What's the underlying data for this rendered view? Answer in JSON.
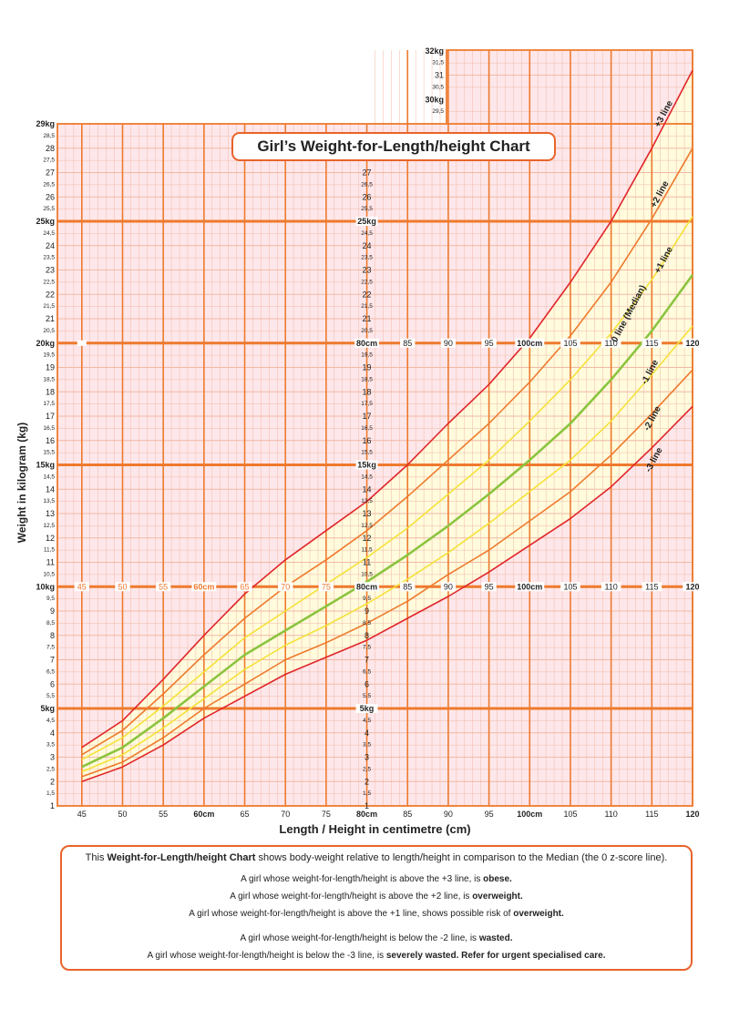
{
  "title": "Girl’s Weight-for-Length/height Chart",
  "chart_data": {
    "type": "line",
    "title": "Girl’s Weight-for-Length/height Chart",
    "xlabel": "Length / Height in centimetre (cm)",
    "ylabel": "Weight in kilogram (kg)",
    "xlim": [
      42,
      120
    ],
    "ylim": [
      1,
      29
    ],
    "ylim_extended_right": [
      1,
      32
    ],
    "grid": true,
    "x_ticks": [
      "45",
      "50",
      "55",
      "60cm",
      "65",
      "70",
      "75",
      "80cm",
      "85",
      "90",
      "95",
      "100cm",
      "105",
      "110",
      "115",
      "120"
    ],
    "x_tick_values": [
      45,
      50,
      55,
      60,
      65,
      70,
      75,
      80,
      85,
      90,
      95,
      100,
      105,
      110,
      115,
      120
    ],
    "y_ticks": [
      "1",
      "1,5",
      "2",
      "2,5",
      "3",
      "3,5",
      "4",
      "4,5",
      "5kg",
      "5,5",
      "6",
      "6,5",
      "7",
      "7,5",
      "8",
      "8,5",
      "9",
      "9,5",
      "10kg",
      "10,5",
      "11",
      "11,5",
      "12",
      "12,5",
      "13",
      "13,5",
      "14",
      "14,5",
      "15kg",
      "15,5",
      "16",
      "16,5",
      "17",
      "17,5",
      "18",
      "18,5",
      "19",
      "19,5",
      "20kg",
      "20,5",
      "21",
      "21,5",
      "22",
      "22,5",
      "23",
      "23,5",
      "24",
      "24,5",
      "25kg",
      "25,5",
      "26",
      "26,5",
      "27",
      "27,5",
      "28",
      "28,5",
      "29kg"
    ],
    "y_ticks_top_right": [
      "29,5",
      "30kg",
      "30,5",
      "31",
      "31,5",
      "32kg"
    ],
    "x": [
      45,
      50,
      55,
      60,
      65,
      70,
      75,
      80,
      85,
      90,
      95,
      100,
      105,
      110,
      115,
      120
    ],
    "series": [
      {
        "name": "+3 line",
        "color": "#e0262b",
        "values": [
          3.4,
          4.5,
          6.2,
          8.0,
          9.7,
          11.1,
          12.3,
          13.5,
          15.0,
          16.7,
          18.3,
          20.2,
          22.5,
          25.0,
          28.0,
          31.2
        ]
      },
      {
        "name": "+2 line",
        "color": "#ee7a2e",
        "values": [
          3.1,
          4.1,
          5.6,
          7.2,
          8.7,
          10.0,
          11.1,
          12.3,
          13.7,
          15.2,
          16.7,
          18.4,
          20.3,
          22.5,
          25.1,
          28.0
        ]
      },
      {
        "name": "+1 line",
        "color": "#f5e23a",
        "values": [
          2.9,
          3.8,
          5.1,
          6.5,
          7.9,
          9.0,
          10.1,
          11.2,
          12.4,
          13.8,
          15.2,
          16.8,
          18.5,
          20.4,
          22.6,
          25.2
        ]
      },
      {
        "name": "0 line (Median)",
        "color": "#8bc43f",
        "values": [
          2.6,
          3.4,
          4.6,
          5.9,
          7.2,
          8.2,
          9.2,
          10.2,
          11.3,
          12.5,
          13.8,
          15.2,
          16.7,
          18.5,
          20.5,
          22.8
        ]
      },
      {
        "name": "-1 line",
        "color": "#f5e23a",
        "values": [
          2.4,
          3.1,
          4.2,
          5.4,
          6.6,
          7.6,
          8.4,
          9.3,
          10.3,
          11.4,
          12.6,
          13.9,
          15.2,
          16.8,
          18.7,
          20.7
        ]
      },
      {
        "name": "-2 line",
        "color": "#ee7a2e",
        "values": [
          2.2,
          2.8,
          3.8,
          5.0,
          6.0,
          7.0,
          7.7,
          8.5,
          9.4,
          10.5,
          11.5,
          12.7,
          13.9,
          15.4,
          17.1,
          18.9
        ]
      },
      {
        "name": "-3 line",
        "color": "#e0262b",
        "values": [
          2.0,
          2.6,
          3.5,
          4.6,
          5.5,
          6.4,
          7.1,
          7.8,
          8.7,
          9.6,
          10.6,
          11.7,
          12.8,
          14.1,
          15.7,
          17.4
        ]
      }
    ]
  },
  "info": {
    "intro_prefix": "This ",
    "intro_bold": "Weight-for-Length/height Chart",
    "intro_rest": " shows body-weight relative to length/height in comparison to the Median (the 0 z-score line).",
    "line1_text": "A girl whose weight-for-length/height is above the +3 line, is ",
    "line1_bold": "obese.",
    "line2_text": "A girl whose weight-for-length/height is above the +2 line, is ",
    "line2_bold": "overweight.",
    "line3_text": "A girl whose weight-for-length/height is above the +1 line, shows possible risk of ",
    "line3_bold": "overweight.",
    "line4_text": "A girl whose weight-for-length/height is below the -2 line, is ",
    "line4_bold": "wasted.",
    "line5_text": "A girl whose weight-for-length/height is below the -3 line, is ",
    "line5_bold": "severely wasted. Refer for urgent specialised care."
  },
  "colors": {
    "grid_major": "#ee7a2e",
    "grid_minor": "#f2b9a6",
    "plot_background": "#fde7ea",
    "band_fill": "#fffbdc",
    "median": "#8bc43f",
    "sd1": "#f5e23a",
    "sd2": "#ee7a2e",
    "sd3": "#e0262b",
    "accent": "#e8642a"
  }
}
